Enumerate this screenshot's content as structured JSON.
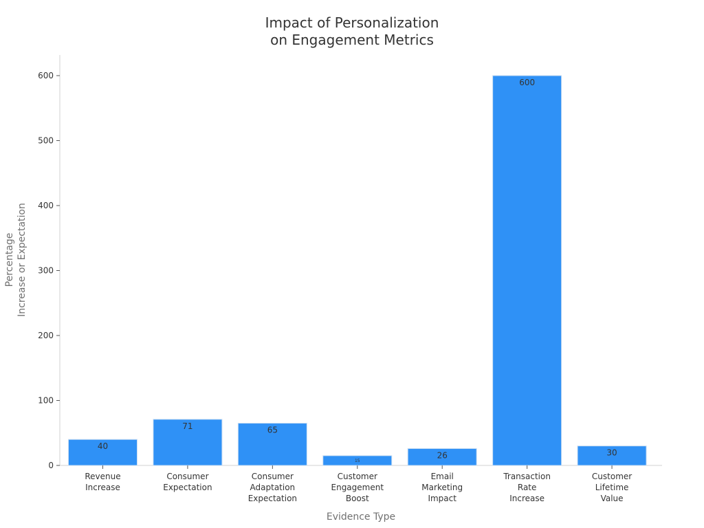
{
  "chart_data": {
    "type": "bar",
    "title_lines": [
      "Impact of Personalization",
      "on Engagement Metrics"
    ],
    "xlabel": "Evidence Type",
    "ylabel_lines": [
      "Percentage",
      "Increase or Expectation"
    ],
    "ylim": [
      0,
      630
    ],
    "yticks": [
      0,
      100,
      200,
      300,
      400,
      500,
      600
    ],
    "bar_color": "#2f91f6",
    "bar_stroke": "#c9ddf2",
    "axis_color": "#d0d0d0",
    "grid": false,
    "categories": [
      [
        "Revenue",
        "Increase"
      ],
      [
        "Consumer",
        "Expectation"
      ],
      [
        "Consumer",
        "Adaptation",
        "Expectation"
      ],
      [
        "Customer",
        "Engagement",
        "Boost"
      ],
      [
        "Email",
        "Marketing",
        "Impact"
      ],
      [
        "Transaction",
        "Rate",
        "Increase"
      ],
      [
        "Customer",
        "Lifetime",
        "Value"
      ]
    ],
    "values": [
      40,
      71,
      65,
      15,
      26,
      600,
      30
    ],
    "data_labels": [
      "40",
      "71",
      "65",
      "15",
      "26",
      "600",
      "30"
    ]
  }
}
